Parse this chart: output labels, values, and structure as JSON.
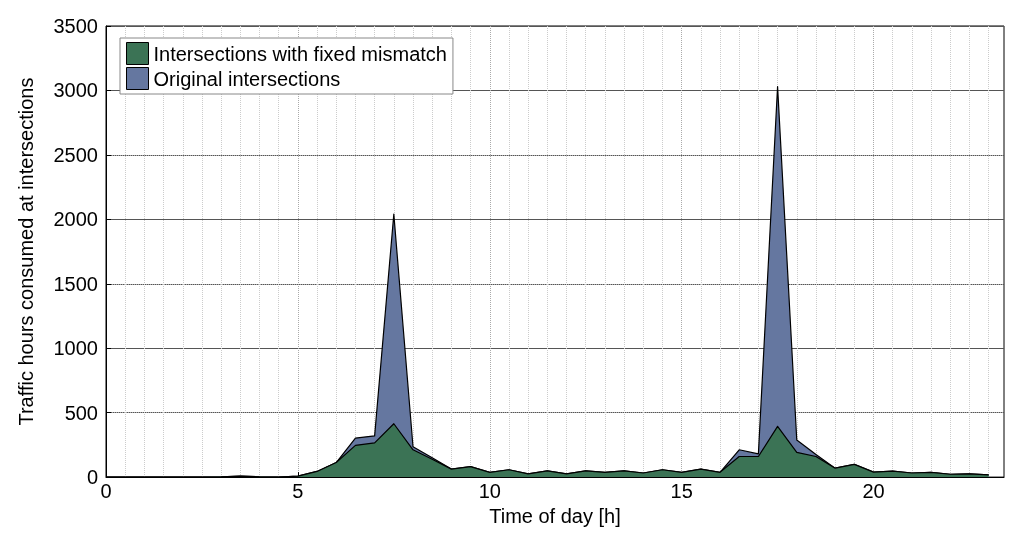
{
  "chart_data": {
    "type": "area",
    "xlabel": "Time of day [h]",
    "ylabel": "Traffic hours consumed at intersections",
    "x": [
      0,
      0.5,
      1,
      1.5,
      2,
      2.5,
      3,
      3.5,
      4,
      4.5,
      5,
      5.5,
      6,
      6.5,
      7,
      7.5,
      8,
      8.5,
      9,
      9.5,
      10,
      10.5,
      11,
      11.5,
      12,
      12.5,
      13,
      13.5,
      14,
      14.5,
      15,
      15.5,
      16,
      16.5,
      17,
      17.5,
      18,
      18.5,
      19,
      19.5,
      20,
      20.5,
      21,
      21.5,
      22,
      22.5,
      23
    ],
    "series": [
      {
        "name": "Intersections with fixed mismatch",
        "color": "#3b7355",
        "values": [
          0,
          0,
          0,
          0,
          0,
          0,
          2,
          8,
          2,
          0,
          7,
          44,
          113,
          246,
          266,
          414,
          212,
          138,
          62,
          81,
          37,
          57,
          25,
          49,
          25,
          49,
          37,
          49,
          32,
          57,
          37,
          62,
          37,
          160,
          160,
          394,
          192,
          160,
          69,
          99,
          39,
          47,
          32,
          37,
          22,
          25,
          17
        ]
      },
      {
        "name": "Original intersections",
        "color": "#6577a0",
        "values": [
          0,
          0,
          0,
          0,
          0,
          0,
          2,
          8,
          2,
          0,
          7,
          44,
          113,
          303,
          320,
          2040,
          236,
          150,
          62,
          81,
          37,
          57,
          25,
          49,
          25,
          49,
          37,
          49,
          32,
          57,
          37,
          62,
          37,
          212,
          180,
          3030,
          288,
          175,
          69,
          99,
          39,
          47,
          32,
          37,
          22,
          25,
          17
        ]
      }
    ],
    "xlim": [
      0,
      23.4
    ],
    "xticks": [
      0,
      5,
      10,
      15,
      20
    ],
    "ylim": [
      0,
      3500
    ],
    "yticks": [
      0,
      500,
      1000,
      1500,
      2000,
      2500,
      3000,
      3500
    ],
    "grid": true,
    "legend": "top left"
  }
}
